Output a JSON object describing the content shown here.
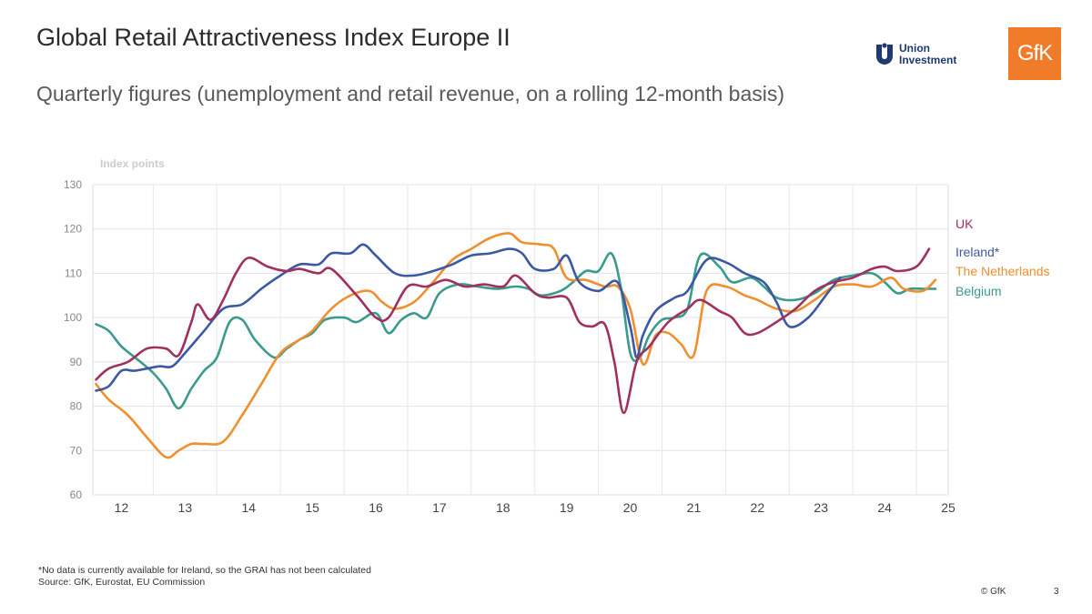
{
  "header": {
    "title": "Global Retail Attractiveness Index Europe II",
    "subtitle": "Quarterly figures (unemployment and retail revenue, on a rolling 12-month basis)"
  },
  "logos": {
    "union_investment": "Union\nInvestment",
    "gfk": "GfK"
  },
  "chart_data": {
    "type": "line",
    "ylabel": "Index points",
    "ylim": [
      60,
      130
    ],
    "yticks": [
      60,
      70,
      80,
      90,
      100,
      110,
      120,
      130
    ],
    "xlim": [
      11.55,
      25.0
    ],
    "xticks": [
      12,
      13,
      14,
      15,
      16,
      17,
      18,
      19,
      20,
      21,
      22,
      23,
      24,
      25
    ],
    "grid": true,
    "legend": "right, labels at line ends",
    "series": [
      {
        "name": "UK",
        "color": "#a0305e",
        "points": [
          [
            11.6,
            86
          ],
          [
            11.8,
            88.5
          ],
          [
            12.1,
            90
          ],
          [
            12.4,
            93
          ],
          [
            12.7,
            93
          ],
          [
            12.9,
            91.5
          ],
          [
            13.1,
            99
          ],
          [
            13.2,
            103
          ],
          [
            13.4,
            99.5
          ],
          [
            13.6,
            104
          ],
          [
            13.8,
            110
          ],
          [
            14.0,
            113.5
          ],
          [
            14.3,
            111.5
          ],
          [
            14.6,
            110.5
          ],
          [
            14.8,
            111
          ],
          [
            15.1,
            110
          ],
          [
            15.3,
            111
          ],
          [
            15.7,
            105
          ],
          [
            16.0,
            100
          ],
          [
            16.2,
            100
          ],
          [
            16.5,
            107
          ],
          [
            16.8,
            107
          ],
          [
            17.1,
            108.5
          ],
          [
            17.4,
            107
          ],
          [
            17.7,
            107.5
          ],
          [
            18.0,
            107
          ],
          [
            18.2,
            109.5
          ],
          [
            18.5,
            105.5
          ],
          [
            18.7,
            104.5
          ],
          [
            19.0,
            104.5
          ],
          [
            19.2,
            99
          ],
          [
            19.4,
            98
          ],
          [
            19.6,
            98.5
          ],
          [
            19.75,
            90
          ],
          [
            19.9,
            78.5
          ],
          [
            20.1,
            90
          ],
          [
            20.3,
            93.5
          ],
          [
            20.6,
            99
          ],
          [
            20.9,
            102
          ],
          [
            21.1,
            104
          ],
          [
            21.4,
            101.5
          ],
          [
            21.6,
            100
          ],
          [
            21.8,
            96.5
          ],
          [
            22.0,
            96.5
          ],
          [
            22.3,
            99
          ],
          [
            22.6,
            102
          ],
          [
            22.9,
            106
          ],
          [
            23.2,
            108
          ],
          [
            23.5,
            109
          ],
          [
            23.8,
            111
          ],
          [
            24.0,
            111.5
          ],
          [
            24.2,
            110.5
          ],
          [
            24.5,
            111.5
          ],
          [
            24.7,
            115.5
          ]
        ]
      },
      {
        "name": "Ireland*",
        "color": "#3b59a3",
        "points": [
          [
            11.6,
            83.5
          ],
          [
            11.8,
            84.5
          ],
          [
            12.0,
            88
          ],
          [
            12.2,
            88
          ],
          [
            12.4,
            88.5
          ],
          [
            12.6,
            89
          ],
          [
            12.8,
            89
          ],
          [
            13.0,
            92
          ],
          [
            13.3,
            97
          ],
          [
            13.6,
            102
          ],
          [
            13.9,
            103
          ],
          [
            14.2,
            106.5
          ],
          [
            14.5,
            109.5
          ],
          [
            14.8,
            112
          ],
          [
            15.1,
            112
          ],
          [
            15.3,
            114.5
          ],
          [
            15.6,
            114.5
          ],
          [
            15.8,
            116.5
          ],
          [
            16.0,
            114
          ],
          [
            16.3,
            110
          ],
          [
            16.6,
            109.5
          ],
          [
            16.9,
            110.5
          ],
          [
            17.2,
            112
          ],
          [
            17.5,
            114
          ],
          [
            17.8,
            114.5
          ],
          [
            18.1,
            115.5
          ],
          [
            18.3,
            114.5
          ],
          [
            18.5,
            111
          ],
          [
            18.8,
            111
          ],
          [
            19.0,
            114
          ],
          [
            19.2,
            108
          ],
          [
            19.5,
            106
          ],
          [
            19.8,
            108
          ],
          [
            20.0,
            98
          ],
          [
            20.1,
            91
          ],
          [
            20.2,
            96
          ],
          [
            20.4,
            101.5
          ],
          [
            20.7,
            104.5
          ],
          [
            20.9,
            106
          ],
          [
            21.2,
            113
          ],
          [
            21.5,
            112.5
          ],
          [
            21.8,
            110
          ],
          [
            22.1,
            108
          ],
          [
            22.3,
            103.5
          ],
          [
            22.5,
            98
          ],
          [
            22.8,
            100
          ],
          [
            23.1,
            105.5
          ],
          [
            23.3,
            109
          ]
        ]
      },
      {
        "name": "The Netherlands",
        "color": "#ef8f2e",
        "points": [
          [
            11.6,
            85
          ],
          [
            11.8,
            81.5
          ],
          [
            12.1,
            78
          ],
          [
            12.4,
            73
          ],
          [
            12.7,
            68.5
          ],
          [
            12.9,
            70
          ],
          [
            13.1,
            71.5
          ],
          [
            13.3,
            71.5
          ],
          [
            13.6,
            72
          ],
          [
            13.9,
            78
          ],
          [
            14.2,
            85
          ],
          [
            14.5,
            92
          ],
          [
            14.8,
            95
          ],
          [
            15.0,
            97
          ],
          [
            15.3,
            102
          ],
          [
            15.6,
            105
          ],
          [
            15.9,
            106
          ],
          [
            16.1,
            103.5
          ],
          [
            16.3,
            102
          ],
          [
            16.6,
            103.5
          ],
          [
            16.9,
            108
          ],
          [
            17.2,
            113
          ],
          [
            17.5,
            115.5
          ],
          [
            17.8,
            118
          ],
          [
            18.1,
            119
          ],
          [
            18.3,
            117
          ],
          [
            18.6,
            116.5
          ],
          [
            18.8,
            115.5
          ],
          [
            19.0,
            109
          ],
          [
            19.3,
            108.5
          ],
          [
            19.6,
            107
          ],
          [
            19.8,
            107
          ],
          [
            20.0,
            102
          ],
          [
            20.2,
            89.5
          ],
          [
            20.4,
            96
          ],
          [
            20.6,
            96.5
          ],
          [
            20.8,
            94
          ],
          [
            21.0,
            91.5
          ],
          [
            21.2,
            106
          ],
          [
            21.5,
            107
          ],
          [
            21.8,
            105
          ],
          [
            22.0,
            104
          ],
          [
            22.3,
            102
          ],
          [
            22.6,
            101.5
          ],
          [
            22.9,
            104
          ],
          [
            23.2,
            107
          ],
          [
            23.5,
            107.5
          ],
          [
            23.8,
            107
          ],
          [
            24.1,
            109
          ],
          [
            24.3,
            106.5
          ],
          [
            24.6,
            106
          ],
          [
            24.8,
            108.5
          ]
        ]
      },
      {
        "name": "Belgium",
        "color": "#3a9a8e",
        "points": [
          [
            11.6,
            98.5
          ],
          [
            11.8,
            97
          ],
          [
            12.0,
            93.5
          ],
          [
            12.3,
            90
          ],
          [
            12.5,
            87.5
          ],
          [
            12.7,
            84
          ],
          [
            12.9,
            79.5
          ],
          [
            13.1,
            84
          ],
          [
            13.3,
            88
          ],
          [
            13.5,
            91
          ],
          [
            13.7,
            99
          ],
          [
            13.9,
            99.5
          ],
          [
            14.1,
            95
          ],
          [
            14.4,
            91
          ],
          [
            14.6,
            93
          ],
          [
            14.8,
            95
          ],
          [
            15.0,
            96.5
          ],
          [
            15.2,
            99.5
          ],
          [
            15.5,
            100
          ],
          [
            15.7,
            99
          ],
          [
            16.0,
            101
          ],
          [
            16.2,
            96.5
          ],
          [
            16.4,
            99.5
          ],
          [
            16.6,
            101
          ],
          [
            16.8,
            100
          ],
          [
            17.0,
            105.5
          ],
          [
            17.3,
            107.5
          ],
          [
            17.6,
            107
          ],
          [
            17.9,
            106.5
          ],
          [
            18.2,
            107
          ],
          [
            18.4,
            106.5
          ],
          [
            18.6,
            105
          ],
          [
            18.9,
            106
          ],
          [
            19.1,
            108
          ],
          [
            19.3,
            110.5
          ],
          [
            19.5,
            110.5
          ],
          [
            19.7,
            114.5
          ],
          [
            19.85,
            107
          ],
          [
            20.0,
            92
          ],
          [
            20.15,
            91
          ],
          [
            20.3,
            96
          ],
          [
            20.5,
            99.5
          ],
          [
            20.7,
            100
          ],
          [
            20.9,
            102
          ],
          [
            21.1,
            114
          ],
          [
            21.4,
            111.5
          ],
          [
            21.6,
            108
          ],
          [
            21.9,
            109
          ],
          [
            22.1,
            107
          ],
          [
            22.3,
            104.5
          ],
          [
            22.6,
            104
          ],
          [
            22.9,
            105.5
          ],
          [
            23.2,
            108.5
          ],
          [
            23.5,
            109.5
          ],
          [
            23.8,
            110
          ],
          [
            24.0,
            108
          ],
          [
            24.2,
            105.5
          ],
          [
            24.4,
            106.5
          ],
          [
            24.6,
            106.5
          ],
          [
            24.8,
            106.5
          ]
        ]
      }
    ]
  },
  "footnote": {
    "line1": "*No data is currently available for Ireland, so the GRAI has not been calculated",
    "line2": "Source: GfK, Eurostat, EU Commission"
  },
  "copyright": "© GfK",
  "page_number": "3"
}
